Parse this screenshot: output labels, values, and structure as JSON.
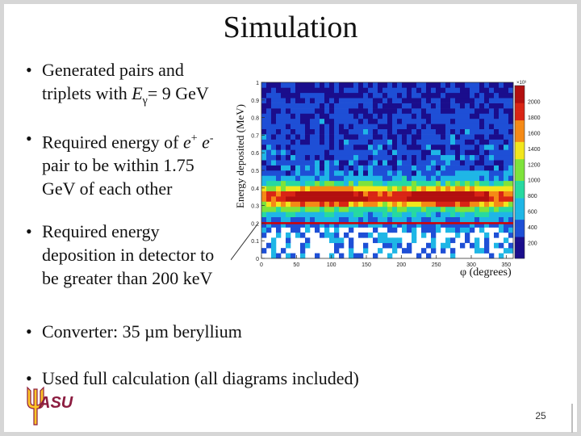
{
  "slide": {
    "title": "Simulation",
    "page_number": "25",
    "logo_text": "ASU"
  },
  "bullets": [
    {
      "pre": "Generated pairs and triplets with ",
      "var": "E",
      "sub": "γ",
      "post": "= 9 GeV"
    },
    {
      "pre": "Required energy of ",
      "e1": "e",
      "sup1": "+",
      "mid": " e",
      "sup2": "-",
      "post": " pair to be within 1.75 GeV of each other"
    },
    {
      "text": "Required energy deposition in detector to be greater than 200 keV"
    },
    {
      "text": "Converter: 35 µm beryllium"
    },
    {
      "text": "Used full calculation (all diagrams included)"
    }
  ],
  "chart_data": {
    "type": "heatmap",
    "title": "",
    "xlabel": "φ (degrees)",
    "ylabel": "Energy deposited (MeV)",
    "xlim": [
      0,
      360
    ],
    "ylim": [
      0,
      1
    ],
    "x_ticks": [
      "0",
      "50",
      "100",
      "150",
      "200",
      "250",
      "300",
      "350"
    ],
    "y_ticks": [
      "0",
      "0.1",
      "0.2",
      "0.3",
      "0.4",
      "0.5",
      "0.6",
      "0.7",
      "0.8",
      "0.9",
      "1"
    ],
    "colorbar_scale": "×10³",
    "colorbar_ticks": [
      "200",
      "400",
      "600",
      "800",
      "1000",
      "1200",
      "1400",
      "1600",
      "1800",
      "2000"
    ],
    "colorbar_max": 2200,
    "cut_line_y": 0.2,
    "band_center_y": 0.35,
    "hotspots_x": [
      90,
      270
    ],
    "colors": [
      "#1a0d8c",
      "#1e4fd6",
      "#1fb6e6",
      "#27d9a0",
      "#7ee33b",
      "#f2e61c",
      "#f58a16",
      "#d92515",
      "#b30f0f"
    ],
    "cut_line_color": "#d40000"
  }
}
